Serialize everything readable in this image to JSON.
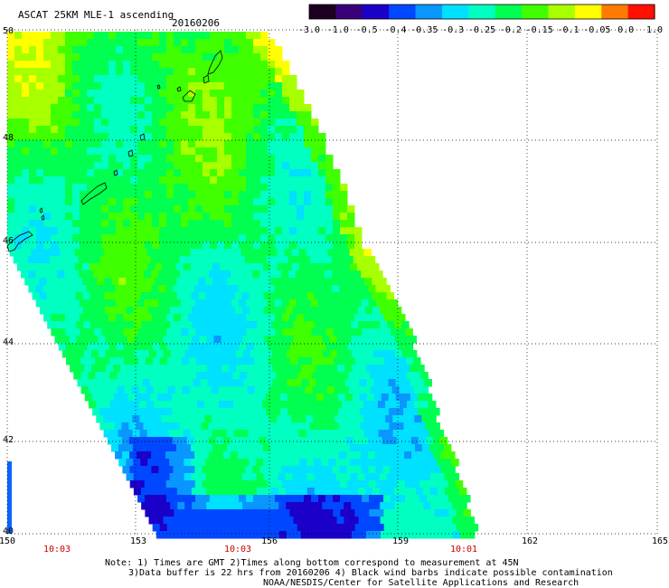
{
  "title": "ASCAT 25KM MLE-1 ascending",
  "date": "20160206",
  "colorbar": {
    "tick_labels": [
      "-3.0",
      "-1.0",
      "-0.5",
      "-0.4",
      "-0.35",
      "-0.3",
      "-0.25",
      "-0.2",
      "-0.15",
      "-0.1",
      "-0.05",
      "0.0",
      "1.0"
    ],
    "colors": [
      "#1c0020",
      "#3a007a",
      "#1a00c8",
      "#0048ff",
      "#0a96ff",
      "#00e0ff",
      "#00ffc0",
      "#00ff50",
      "#40ff00",
      "#a8ff00",
      "#ffff00",
      "#ff7a00",
      "#ff1000"
    ]
  },
  "map": {
    "lat_labels": [
      "50",
      "48",
      "46",
      "44",
      "42",
      "40"
    ],
    "lon_labels": [
      "150",
      "153",
      "156",
      "159",
      "162",
      "165"
    ],
    "time_labels": [
      "10:03",
      "10:03",
      "10:01"
    ],
    "time_color": "#cc0000"
  },
  "notes": {
    "line1": "Note: 1) Times are GMT 2)Times along bottom correspond to measurement at 45N",
    "line2": "3)Data buffer is 22 hrs from 20160206 4) Black wind barbs indicate possible contamination",
    "line3": "NOAA/NESDIS/Center for Satellite Applications and Research"
  }
}
